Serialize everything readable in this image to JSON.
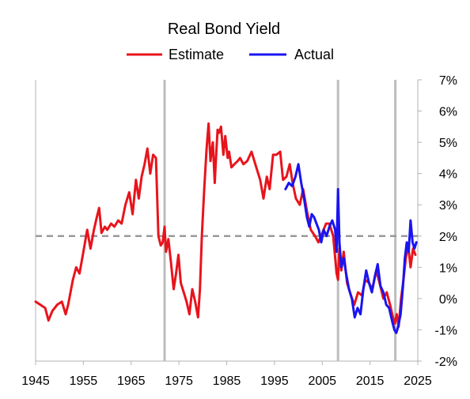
{
  "chart_data": {
    "type": "line",
    "title": "Real Bond Yield",
    "xlabel": "",
    "ylabel": "",
    "xlim": [
      1945,
      2025
    ],
    "ylim": [
      -2,
      7
    ],
    "x_ticks": [
      1945,
      1955,
      1965,
      1975,
      1985,
      1995,
      2005,
      2015,
      2025
    ],
    "x_tick_labels": [
      "1945",
      "1955",
      "1965",
      "1975",
      "1985",
      "1995",
      "2005",
      "2015",
      "2025"
    ],
    "y_ticks": [
      -2,
      -1,
      0,
      1,
      2,
      3,
      4,
      5,
      6,
      7
    ],
    "y_tick_labels": [
      "-2%",
      "-1%",
      "0%",
      "1%",
      "2%",
      "3%",
      "4%",
      "5%",
      "6%",
      "7%"
    ],
    "y_axis_side": "right",
    "grid": false,
    "legend_position": "top-center",
    "reference_line": {
      "y": 2,
      "style": "dashed",
      "color": "#999999"
    },
    "vertical_markers": {
      "x": [
        1972.0,
        2008.3,
        2020.3
      ],
      "color": "#bdbdbd"
    },
    "series": [
      {
        "name": "Estimate",
        "color": "#e8141c",
        "x": [
          1945.0,
          1946.0,
          1947.0,
          1947.7,
          1948.5,
          1949.5,
          1950.5,
          1951.3,
          1951.8,
          1952.3,
          1952.8,
          1953.5,
          1954.2,
          1955.0,
          1955.8,
          1956.5,
          1957.2,
          1957.8,
          1958.3,
          1958.8,
          1959.5,
          1960.0,
          1960.8,
          1961.5,
          1962.3,
          1963.0,
          1963.8,
          1964.6,
          1965.3,
          1966.0,
          1966.6,
          1967.2,
          1967.8,
          1968.4,
          1969.0,
          1969.6,
          1970.2,
          1970.7,
          1971.2,
          1971.6,
          1972.0,
          1972.3,
          1972.8,
          1973.3,
          1973.9,
          1974.4,
          1974.9,
          1975.4,
          1976.0,
          1976.6,
          1977.2,
          1977.8,
          1978.4,
          1979.0,
          1979.4,
          1979.8,
          1980.3,
          1980.8,
          1981.2,
          1981.6,
          1982.1,
          1982.5,
          1982.8,
          1983.1,
          1983.4,
          1983.8,
          1984.3,
          1984.7,
          1985.2,
          1985.5,
          1986.0,
          1986.6,
          1987.3,
          1987.8,
          1988.5,
          1989.3,
          1990.2,
          1991.2,
          1992.0,
          1992.7,
          1993.4,
          1994.0,
          1994.7,
          1995.4,
          1996.2,
          1996.8,
          1997.5,
          1998.2,
          1998.8,
          1999.5,
          2000.3,
          2001.0,
          2001.8,
          2002.6,
          2003.5,
          2004.2,
          2005.0,
          2005.8,
          2006.5,
          2007.3,
          2008.0,
          2008.3,
          2008.6,
          2009.0,
          2009.5,
          2010.2,
          2011.0,
          2011.7,
          2012.5,
          2013.3,
          2014.0,
          2014.8,
          2015.5,
          2016.3,
          2017.0,
          2017.8,
          2018.5,
          2019.2,
          2019.8,
          2020.2,
          2020.6,
          2021.0,
          2021.5,
          2022.0,
          2022.5,
          2023.0,
          2023.5,
          2024.0,
          2024.5
        ],
        "values": [
          -0.1,
          -0.2,
          -0.3,
          -0.7,
          -0.4,
          -0.2,
          -0.1,
          -0.5,
          -0.2,
          0.2,
          0.6,
          1.0,
          0.8,
          1.5,
          2.2,
          1.6,
          2.2,
          2.6,
          2.9,
          2.1,
          2.3,
          2.2,
          2.4,
          2.3,
          2.5,
          2.4,
          3.0,
          3.4,
          2.7,
          3.8,
          3.2,
          3.9,
          4.3,
          4.8,
          4.0,
          4.6,
          4.5,
          2.0,
          1.7,
          1.8,
          2.3,
          1.5,
          1.9,
          1.2,
          0.3,
          0.8,
          1.4,
          0.5,
          0.2,
          -0.1,
          -0.5,
          0.3,
          -0.1,
          -0.6,
          0.3,
          2.0,
          3.5,
          4.8,
          5.6,
          4.4,
          5.0,
          3.7,
          4.6,
          5.4,
          5.3,
          5.5,
          4.6,
          5.2,
          4.5,
          4.7,
          4.2,
          4.3,
          4.4,
          4.5,
          4.3,
          4.4,
          4.7,
          4.2,
          3.8,
          3.2,
          3.9,
          3.5,
          4.6,
          4.6,
          4.7,
          3.8,
          3.9,
          4.3,
          3.7,
          3.2,
          3.0,
          3.5,
          2.8,
          2.2,
          2.0,
          1.8,
          2.1,
          2.4,
          2.4,
          2.0,
          0.8,
          0.6,
          1.6,
          0.9,
          1.5,
          0.5,
          0.1,
          -0.2,
          0.2,
          0.1,
          0.6,
          0.5,
          0.3,
          0.9,
          0.5,
          0.0,
          0.2,
          -0.2,
          -0.6,
          -0.8,
          -0.5,
          -0.9,
          0.0,
          0.6,
          1.3,
          1.7,
          1.0,
          1.6,
          1.4
        ]
      },
      {
        "name": "Actual",
        "color": "#1a14f0",
        "x": [
          1997.3,
          1998.0,
          1998.7,
          1999.4,
          2000.0,
          2000.6,
          2001.2,
          2001.8,
          2002.3,
          2002.8,
          2003.3,
          2003.8,
          2004.3,
          2004.8,
          2005.3,
          2005.9,
          2006.5,
          2007.1,
          2007.7,
          2008.0,
          2008.3,
          2008.6,
          2009.0,
          2009.5,
          2010.0,
          2010.6,
          2011.2,
          2011.8,
          2012.4,
          2013.0,
          2013.6,
          2014.2,
          2014.8,
          2015.4,
          2016.0,
          2016.6,
          2017.2,
          2017.8,
          2018.4,
          2019.0,
          2019.6,
          2020.1,
          2020.5,
          2020.9,
          2021.4,
          2021.9,
          2022.3,
          2022.7,
          2023.1,
          2023.5,
          2023.9,
          2024.3,
          2024.7
        ],
        "values": [
          3.5,
          3.7,
          3.6,
          3.9,
          4.3,
          3.7,
          3.2,
          2.6,
          2.3,
          2.7,
          2.6,
          2.4,
          2.2,
          1.8,
          2.2,
          2.0,
          2.3,
          2.5,
          2.2,
          1.5,
          3.5,
          1.8,
          1.0,
          1.3,
          0.8,
          0.3,
          0.0,
          -0.6,
          -0.3,
          -0.5,
          0.3,
          0.9,
          0.5,
          0.2,
          0.7,
          1.1,
          0.4,
          0.2,
          -0.2,
          -0.3,
          -0.7,
          -1.0,
          -1.1,
          -0.9,
          -0.5,
          0.4,
          1.3,
          1.8,
          1.5,
          2.5,
          1.8,
          1.6,
          1.8
        ]
      }
    ]
  }
}
